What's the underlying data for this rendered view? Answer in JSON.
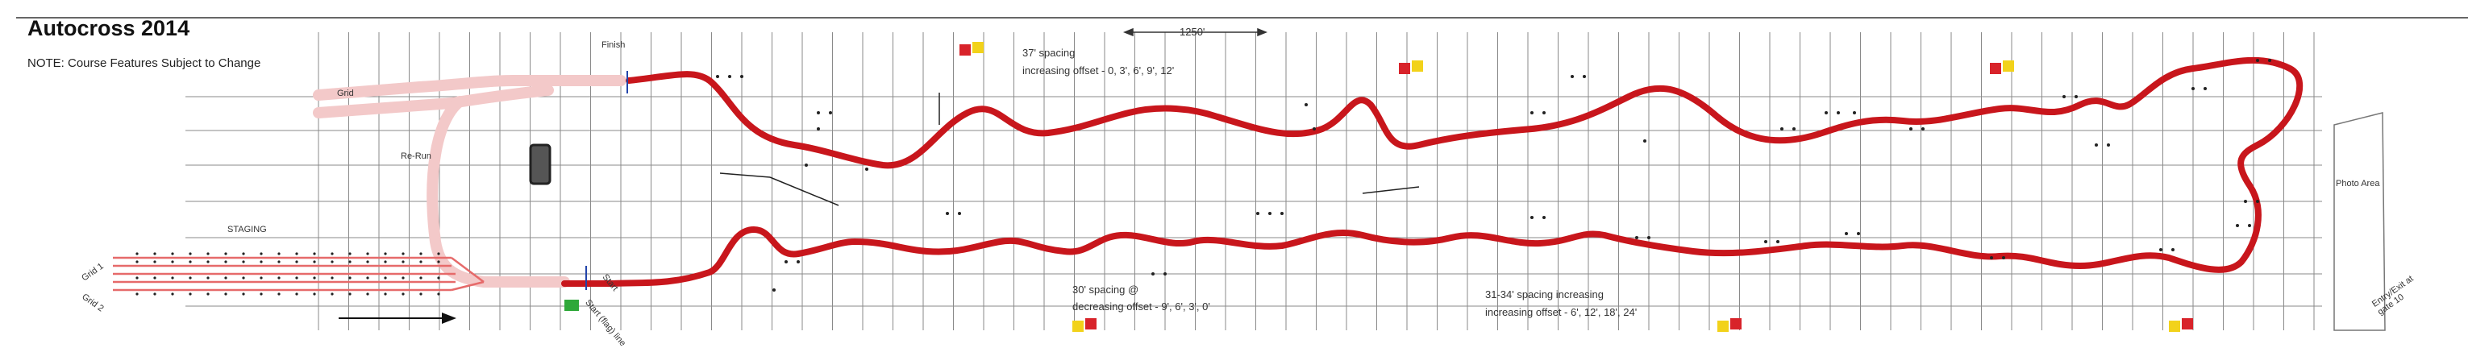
{
  "header": {
    "title": "Autocross 2014",
    "note": "NOTE: Course Features Subject to Change"
  },
  "labels": {
    "finish": "Finish",
    "grid": "Grid",
    "re_run": "Re-Run",
    "staging": "STAGING",
    "grid_1": "Grid 1",
    "grid_2": "Grid 2",
    "photo_area": "Photo Area",
    "entry_exit": "Entry/Exit at gate 10",
    "start": "Start",
    "start_flag_line": "Start (flag) line",
    "spacing_top": "37' spacing",
    "offset_top": "increasing offset - 0, 3', 6', 9', 12'",
    "dimension": "1250'",
    "spacing_mid": "30' spacing @",
    "offset_mid": "decreasing offset - 9', 6', 3', 0'",
    "spacing_right": "31-34' spacing increasing",
    "offset_right": "increasing offset - 6', 12', 18', 24'"
  },
  "colors": {
    "course": "#c8161c",
    "grid_lines": "#8a8a8a",
    "staging_lanes": "#e66a6a",
    "return_road": "#f3c9c9",
    "flag_red": "#d8232a",
    "flag_yellow": "#f2d21a",
    "flag_green": "#2fa83a"
  }
}
